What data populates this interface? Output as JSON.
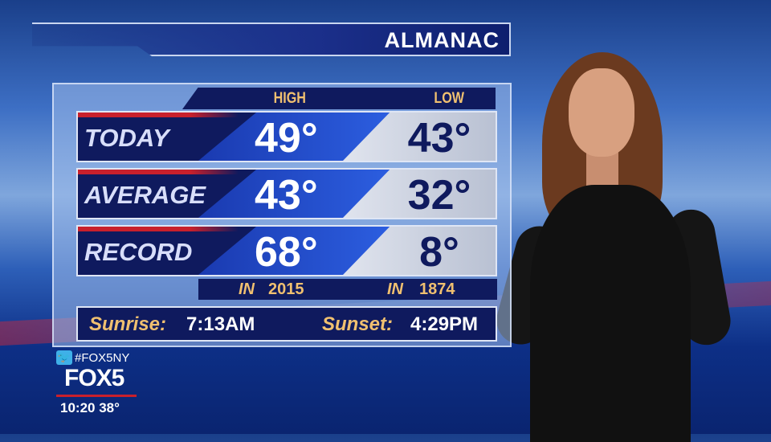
{
  "title": "ALMANAC",
  "headers": {
    "high": "HIGH",
    "low": "LOW"
  },
  "rows": [
    {
      "label": "TODAY",
      "high": "49°",
      "low": "43°"
    },
    {
      "label": "AVERAGE",
      "high": "43°",
      "low": "32°"
    },
    {
      "label": "RECORD",
      "high": "68°",
      "low": "8°"
    }
  ],
  "record_years": {
    "in_label": "IN",
    "high_year": "2015",
    "low_year": "1874"
  },
  "sun": {
    "sunrise_label": "Sunrise:",
    "sunrise": "7:13AM",
    "sunset_label": "Sunset:",
    "sunset": "4:29PM"
  },
  "station": {
    "hashtag": "#FOX5NY",
    "logo": "FOX5",
    "time": "10:20",
    "temp": "38°",
    "twitter_icon": "twitter-icon"
  },
  "colors": {
    "navy": "#0f1a5e",
    "gold": "#f0c070",
    "red": "#c8202c"
  }
}
